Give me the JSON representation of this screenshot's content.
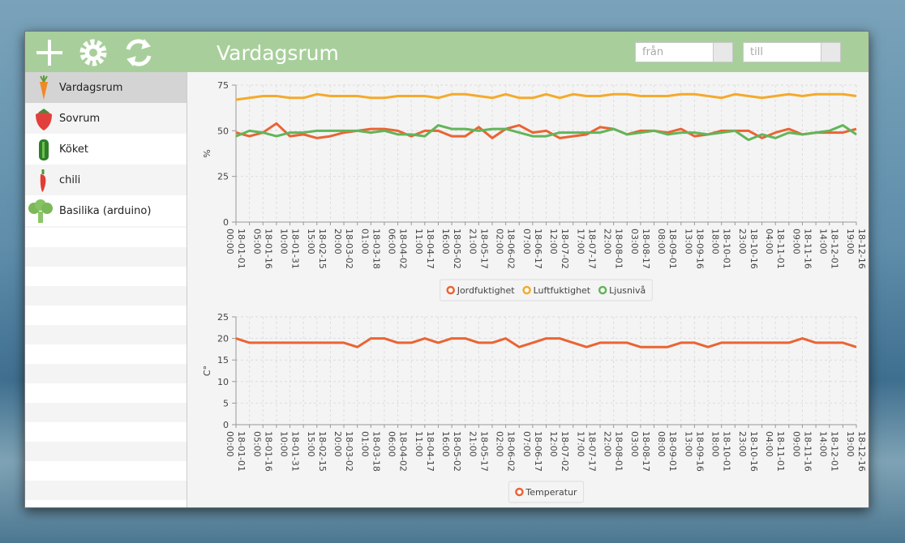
{
  "header": {
    "title": "Vardagsrum",
    "from_placeholder": "från",
    "to_placeholder": "till"
  },
  "sidebar": {
    "items": [
      "Vardagsrum",
      "Sovrum",
      "Köket",
      "chili",
      "Basilika (arduino)"
    ]
  },
  "chart_data": [
    {
      "type": "line",
      "y_label": "%",
      "ylim": [
        0,
        75
      ],
      "yticks": [
        0,
        25,
        50,
        75
      ],
      "grid": true,
      "categories": [
        "18-01-01 00:00",
        null,
        "18-01-16 05:00",
        null,
        "18-01-31 10:00",
        null,
        "18-02-15 15:00",
        null,
        "18-03-02 20:00",
        null,
        "18-03-18 01:00",
        null,
        "18-04-02 06:00",
        null,
        "18-04-17 11:00",
        null,
        "18-05-02 16:00",
        null,
        "18-05-17 21:00",
        null,
        "18-06-02 02:00",
        null,
        "18-06-17 07:00",
        null,
        "18-07-02 12:00",
        null,
        "18-07-17 17:00",
        null,
        "18-08-01 22:00",
        null,
        "18-08-17 03:00",
        null,
        "18-09-01 08:00",
        null,
        "18-09-16 13:00",
        null,
        "18-10-01 18:00",
        null,
        "18-10-16 23:00",
        null,
        "18-11-01 04:00",
        null,
        "18-11-16 09:00",
        null,
        "18-12-01 14:00",
        null,
        "18-12-16 19:00"
      ],
      "series": [
        {
          "name": "Jordfuktighet",
          "color": "#ea6433",
          "values": [
            49,
            47,
            49,
            54,
            47,
            48,
            46,
            47,
            49,
            50,
            51,
            51,
            50,
            47,
            50,
            50,
            47,
            47,
            52,
            46,
            51,
            53,
            49,
            50,
            46,
            47,
            48,
            52,
            51,
            48,
            50,
            50,
            49,
            51,
            47,
            48,
            50,
            50,
            50,
            46,
            49,
            51,
            48,
            49,
            49,
            49,
            51
          ]
        },
        {
          "name": "Luftfuktighet",
          "color": "#f4aa2c",
          "values": [
            67,
            68,
            69,
            69,
            68,
            68,
            70,
            69,
            69,
            69,
            68,
            68,
            69,
            69,
            69,
            68,
            70,
            70,
            69,
            68,
            70,
            68,
            68,
            70,
            68,
            70,
            69,
            69,
            70,
            70,
            69,
            69,
            69,
            70,
            70,
            69,
            68,
            70,
            69,
            68,
            69,
            70,
            69,
            70,
            70,
            70,
            69
          ]
        },
        {
          "name": "Ljusnivå",
          "color": "#62b55a",
          "values": [
            47,
            50,
            49,
            47,
            49,
            49,
            50,
            50,
            50,
            50,
            49,
            50,
            48,
            48,
            47,
            53,
            51,
            51,
            50,
            51,
            51,
            49,
            47,
            47,
            49,
            49,
            49,
            49,
            51,
            48,
            49,
            50,
            48,
            49,
            49,
            48,
            49,
            50,
            45,
            48,
            46,
            49,
            48,
            49,
            50,
            53,
            48
          ]
        }
      ]
    },
    {
      "type": "line",
      "y_label": "C°",
      "ylim": [
        0,
        25
      ],
      "yticks": [
        0,
        5,
        10,
        15,
        20,
        25
      ],
      "grid": true,
      "categories": [
        "18-01-01 00:00",
        null,
        "18-01-16 05:00",
        null,
        "18-01-31 10:00",
        null,
        "18-02-15 15:00",
        null,
        "18-03-02 20:00",
        null,
        "18-03-18 01:00",
        null,
        "18-04-02 06:00",
        null,
        "18-04-17 11:00",
        null,
        "18-05-02 16:00",
        null,
        "18-05-17 21:00",
        null,
        "18-06-02 02:00",
        null,
        "18-06-17 07:00",
        null,
        "18-07-02 12:00",
        null,
        "18-07-17 17:00",
        null,
        "18-08-01 22:00",
        null,
        "18-08-17 03:00",
        null,
        "18-09-01 08:00",
        null,
        "18-09-16 13:00",
        null,
        "18-10-01 18:00",
        null,
        "18-10-16 23:00",
        null,
        "18-11-01 04:00",
        null,
        "18-11-16 09:00",
        null,
        "18-12-01 14:00",
        null,
        "18-12-16 19:00"
      ],
      "series": [
        {
          "name": "Temperatur",
          "color": "#ea6433",
          "values": [
            20,
            19,
            19,
            19,
            19,
            19,
            19,
            19,
            19,
            18,
            20,
            20,
            19,
            19,
            20,
            19,
            20,
            20,
            19,
            19,
            20,
            18,
            19,
            20,
            20,
            19,
            18,
            19,
            19,
            19,
            18,
            18,
            18,
            19,
            19,
            18,
            19,
            19,
            19,
            19,
            19,
            19,
            20,
            19,
            19,
            19,
            18
          ]
        }
      ]
    }
  ]
}
